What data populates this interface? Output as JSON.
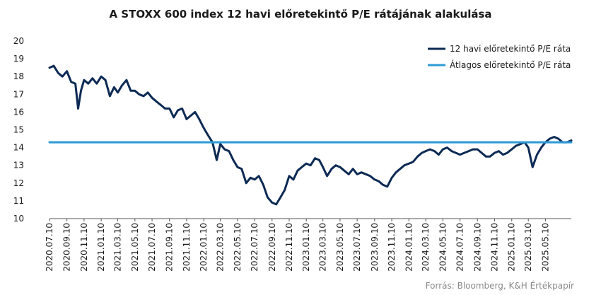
{
  "chart_data": {
    "type": "line",
    "title": "A STOXX 600 index 12 havi előretekintő P/E rátájának alakulása",
    "xlabel": "",
    "ylabel": "",
    "ylim": [
      10,
      20
    ],
    "yticks": [
      10,
      11,
      12,
      13,
      14,
      15,
      16,
      17,
      18,
      19,
      20
    ],
    "grid": false,
    "legend_position": "top-right",
    "source": "Forrás: Bloomberg, K&H Értékpapír",
    "x_tick_labels": [
      "2020.07.10",
      "2020.09.10",
      "2020.11.10",
      "2021.01.10",
      "2021.03.10",
      "2021.05.10",
      "2021.07.10",
      "2021.09.10",
      "2021.11.10",
      "2022.01.10",
      "2022.03.10",
      "2022.05.10",
      "2022.07.10",
      "2022.09.10",
      "2022.11.10",
      "2023.01.10",
      "2023.03.10",
      "2023.05.10",
      "2023.07.10",
      "2023.09.10",
      "2023.11.10",
      "2024.01.10",
      "2024.03.10",
      "2024.05.10",
      "2024.07.10",
      "2024.09.10",
      "2024.11.10",
      "2025.01.10",
      "2025.03.10",
      "2025.05.10"
    ],
    "series": [
      {
        "name": "12 havi előretekintő P/E ráta",
        "color": "#0d2a54",
        "x": [
          "2020.07.10",
          "2020.07.25",
          "2020.08.10",
          "2020.08.25",
          "2020.09.10",
          "2020.09.25",
          "2020.10.10",
          "2020.10.20",
          "2020.10.30",
          "2020.11.10",
          "2020.11.25",
          "2020.12.10",
          "2020.12.25",
          "2021.01.10",
          "2021.01.25",
          "2021.02.10",
          "2021.02.25",
          "2021.03.10",
          "2021.03.25",
          "2021.04.10",
          "2021.04.25",
          "2021.05.10",
          "2021.05.25",
          "2021.06.10",
          "2021.06.25",
          "2021.07.10",
          "2021.07.25",
          "2021.08.10",
          "2021.08.25",
          "2021.09.10",
          "2021.09.25",
          "2021.10.10",
          "2021.10.25",
          "2021.11.10",
          "2021.11.25",
          "2021.12.10",
          "2021.12.25",
          "2022.01.10",
          "2022.01.25",
          "2022.02.10",
          "2022.02.25",
          "2022.03.10",
          "2022.03.25",
          "2022.04.10",
          "2022.04.25",
          "2022.05.10",
          "2022.05.25",
          "2022.06.10",
          "2022.06.25",
          "2022.07.10",
          "2022.07.25",
          "2022.08.10",
          "2022.08.25",
          "2022.09.10",
          "2022.09.25",
          "2022.10.10",
          "2022.10.25",
          "2022.11.10",
          "2022.11.25",
          "2022.12.10",
          "2022.12.25",
          "2023.01.10",
          "2023.01.25",
          "2023.02.10",
          "2023.02.25",
          "2023.03.10",
          "2023.03.25",
          "2023.04.10",
          "2023.04.25",
          "2023.05.10",
          "2023.05.25",
          "2023.06.10",
          "2023.06.25",
          "2023.07.10",
          "2023.07.25",
          "2023.08.10",
          "2023.08.25",
          "2023.09.10",
          "2023.09.25",
          "2023.10.10",
          "2023.10.25",
          "2023.11.10",
          "2023.11.25",
          "2023.12.10",
          "2023.12.25",
          "2024.01.10",
          "2024.01.25",
          "2024.02.10",
          "2024.02.25",
          "2024.03.10",
          "2024.03.25",
          "2024.04.10",
          "2024.04.25",
          "2024.05.10",
          "2024.05.25",
          "2024.06.10",
          "2024.06.25",
          "2024.07.10",
          "2024.07.25",
          "2024.08.10",
          "2024.08.25",
          "2024.09.10",
          "2024.09.25",
          "2024.10.10",
          "2024.10.25",
          "2024.11.10",
          "2024.11.25",
          "2024.12.10",
          "2024.12.25",
          "2025.01.10",
          "2025.01.25",
          "2025.02.10",
          "2025.02.25",
          "2025.03.10",
          "2025.03.25",
          "2025.04.10",
          "2025.04.25",
          "2025.05.10",
          "2025.05.25",
          "2025.06.10",
          "2025.06.25",
          "2025.07.10",
          "2025.07.25",
          "2025.08.10"
        ],
        "y": [
          18.5,
          18.6,
          18.2,
          18.0,
          18.3,
          17.7,
          17.6,
          16.2,
          17.2,
          17.8,
          17.6,
          17.9,
          17.6,
          18.0,
          17.8,
          16.9,
          17.4,
          17.1,
          17.5,
          17.8,
          17.2,
          17.2,
          17.0,
          16.9,
          17.1,
          16.8,
          16.6,
          16.4,
          16.2,
          16.2,
          15.7,
          16.1,
          16.2,
          15.6,
          15.8,
          16.0,
          15.6,
          15.1,
          14.7,
          14.3,
          13.3,
          14.2,
          13.9,
          13.8,
          13.3,
          12.9,
          12.8,
          12.0,
          12.3,
          12.2,
          12.4,
          11.9,
          11.2,
          10.9,
          10.8,
          11.2,
          11.6,
          12.4,
          12.2,
          12.7,
          12.9,
          13.1,
          13.0,
          13.4,
          13.3,
          12.9,
          12.4,
          12.8,
          13.0,
          12.9,
          12.7,
          12.5,
          12.8,
          12.5,
          12.6,
          12.5,
          12.4,
          12.2,
          12.1,
          11.9,
          11.8,
          12.3,
          12.6,
          12.8,
          13.0,
          13.1,
          13.2,
          13.5,
          13.7,
          13.8,
          13.9,
          13.8,
          13.6,
          13.9,
          14.0,
          13.8,
          13.7,
          13.6,
          13.7,
          13.8,
          13.9,
          13.9,
          13.7,
          13.5,
          13.5,
          13.7,
          13.8,
          13.6,
          13.7,
          13.9,
          14.1,
          14.2,
          14.3,
          14.0,
          12.9,
          13.6,
          14.0,
          14.3,
          14.5,
          14.6,
          14.5,
          14.3,
          14.3,
          14.4
        ]
      },
      {
        "name": "Átlagos előretekintő P/E ráta",
        "color": "#2e9ad6",
        "x": [
          "2020.07.10",
          "2025.08.10"
        ],
        "y": [
          14.3,
          14.3
        ]
      }
    ]
  }
}
